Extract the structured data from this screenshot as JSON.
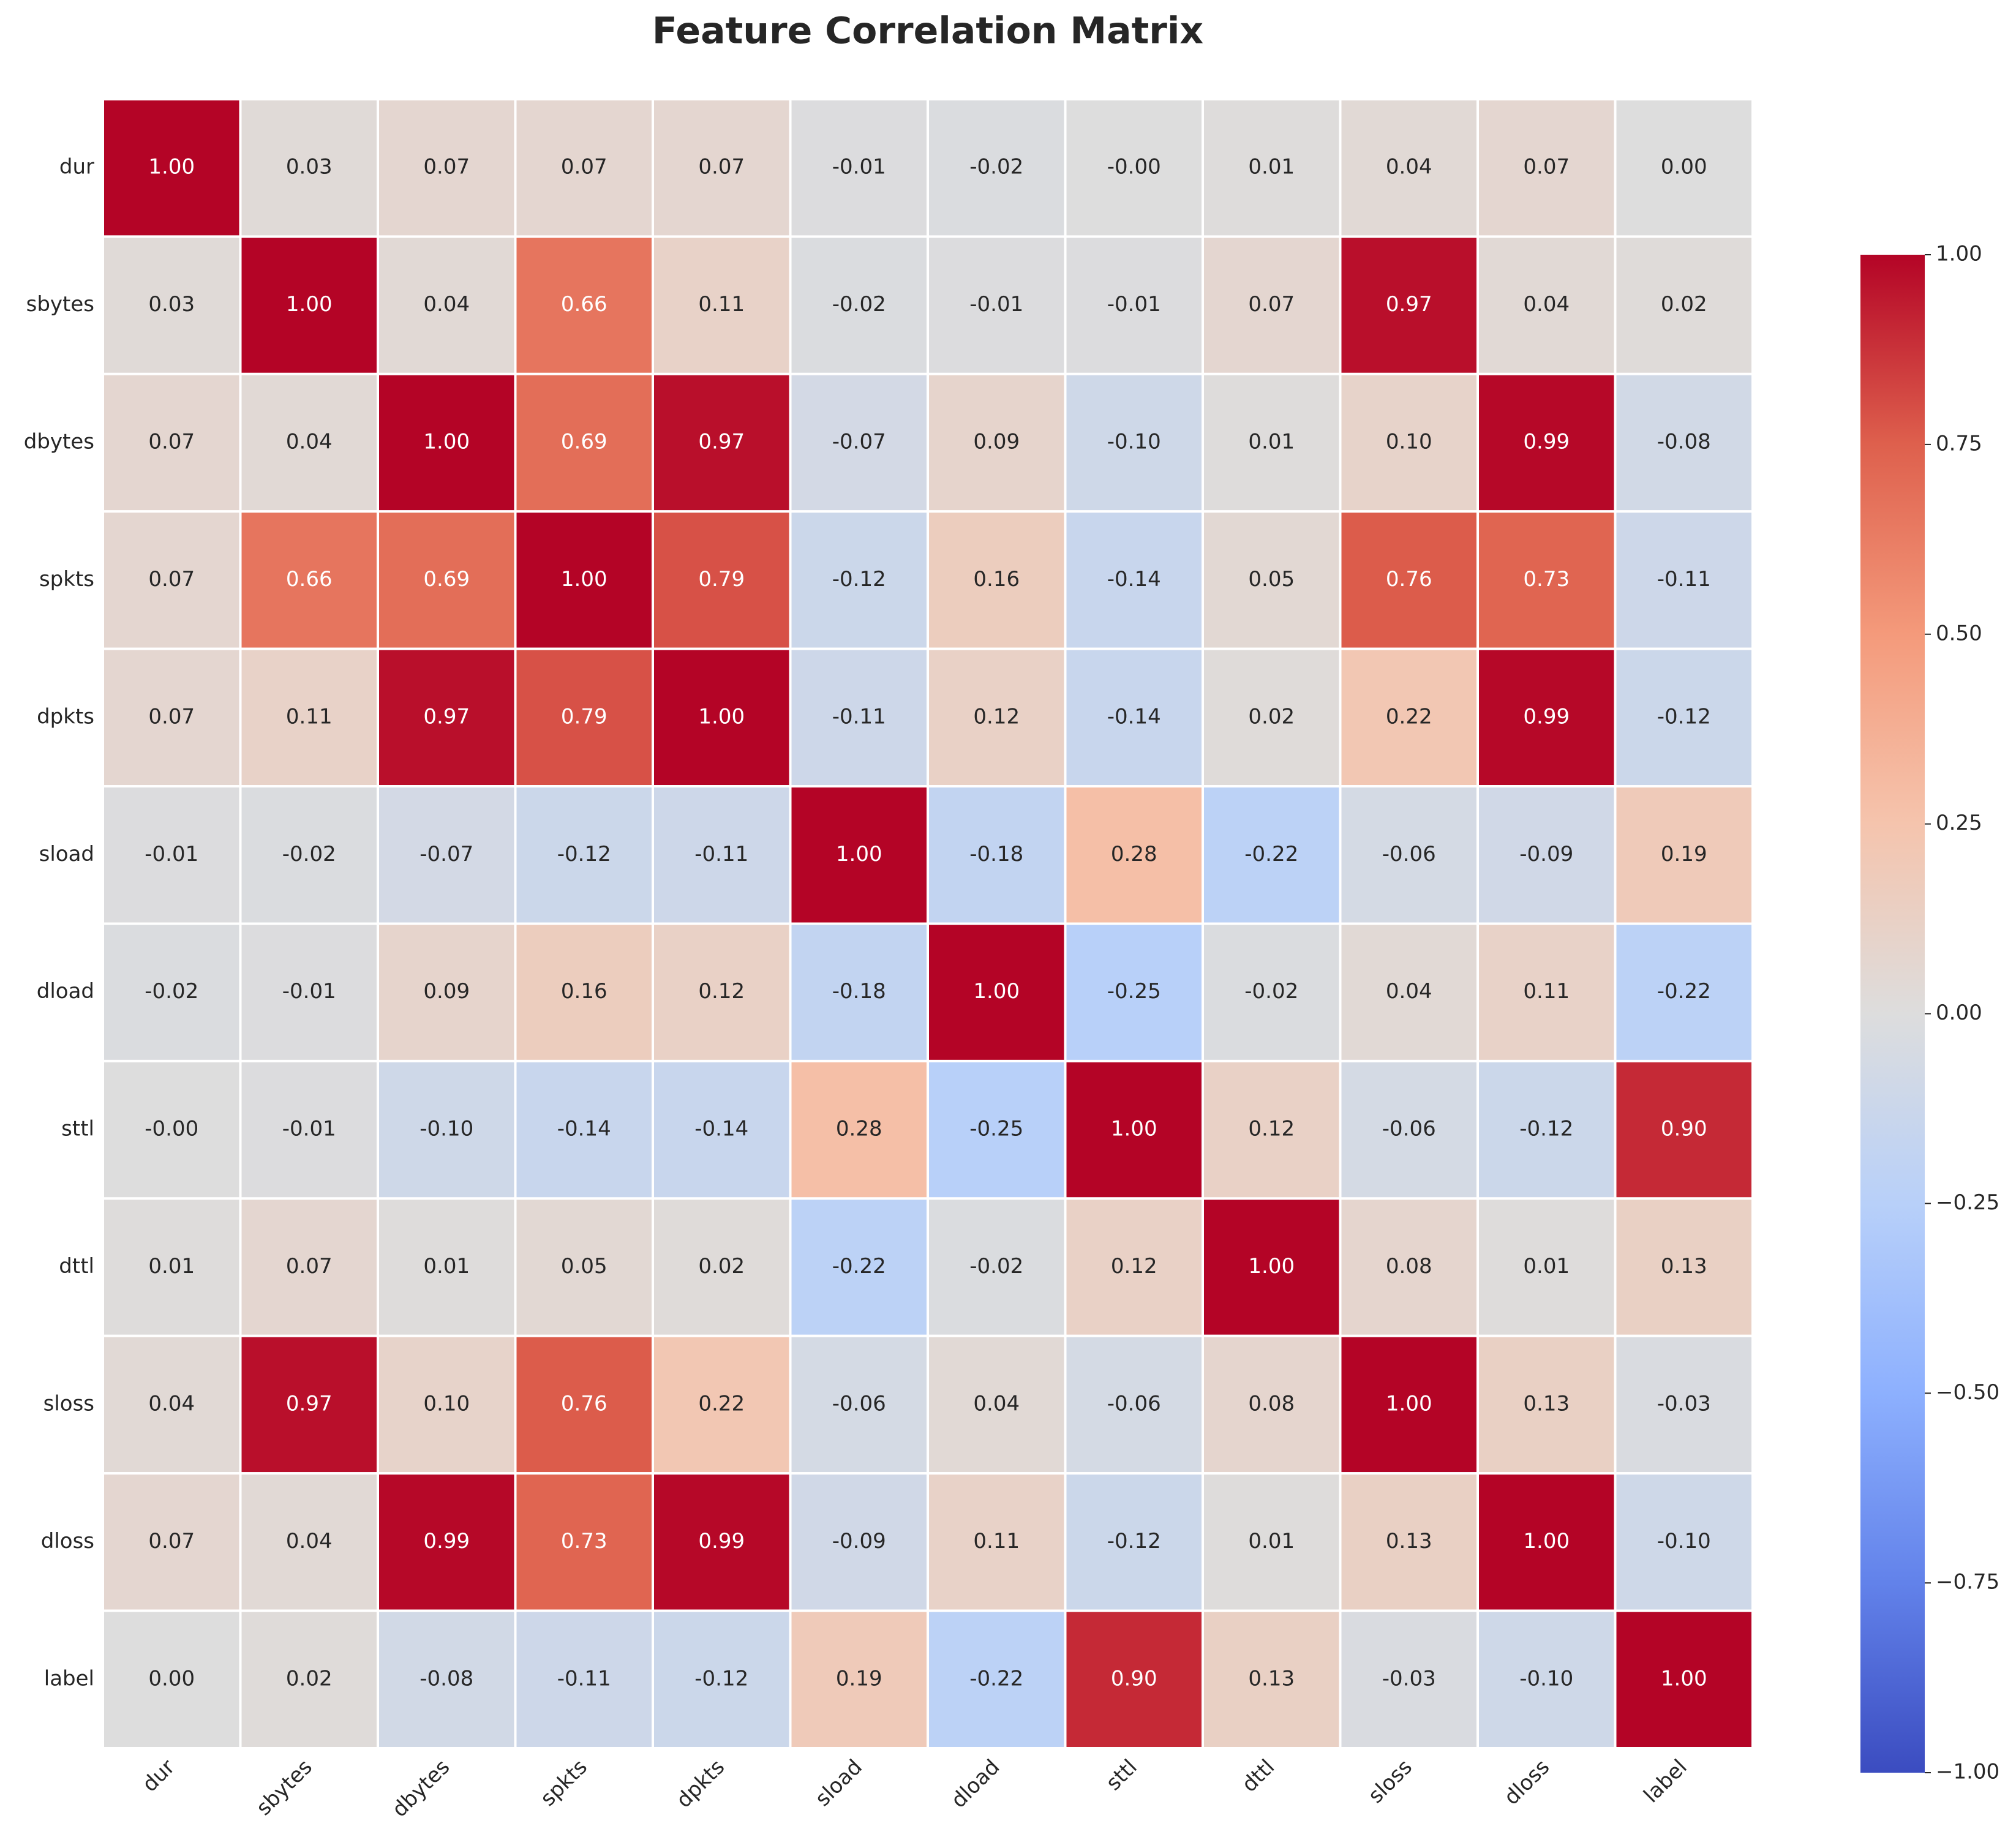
{
  "chart_data": {
    "type": "heatmap",
    "title": "Feature Correlation Matrix",
    "x_categories": [
      "dur",
      "sbytes",
      "dbytes",
      "spkts",
      "dpkts",
      "sload",
      "dload",
      "sttl",
      "dttl",
      "sloss",
      "dloss",
      "label"
    ],
    "y_categories": [
      "dur",
      "sbytes",
      "dbytes",
      "spkts",
      "dpkts",
      "sload",
      "dload",
      "sttl",
      "dttl",
      "sloss",
      "dloss",
      "label"
    ],
    "values": [
      [
        1,
        0.03,
        0.07,
        0.07,
        0.07,
        -0.01,
        -0.02,
        0,
        0.01,
        0.04,
        0.07,
        0
      ],
      [
        0.03,
        1,
        0.04,
        0.66,
        0.11,
        -0.02,
        -0.01,
        -0.01,
        0.07,
        0.97,
        0.04,
        0.02
      ],
      [
        0.07,
        0.04,
        1,
        0.69,
        0.97,
        -0.07,
        0.09,
        -0.1,
        0.01,
        0.1,
        0.99,
        -0.08
      ],
      [
        0.07,
        0.66,
        0.69,
        1,
        0.79,
        -0.12,
        0.16,
        -0.14,
        0.05,
        0.76,
        0.73,
        -0.11
      ],
      [
        0.07,
        0.11,
        0.97,
        0.79,
        1,
        -0.11,
        0.12,
        -0.14,
        0.02,
        0.22,
        0.99,
        -0.12
      ],
      [
        -0.01,
        -0.02,
        -0.07,
        -0.12,
        -0.11,
        1,
        -0.18,
        0.28,
        -0.22,
        -0.06,
        -0.09,
        0.19
      ],
      [
        -0.02,
        -0.01,
        0.09,
        0.16,
        0.12,
        -0.18,
        1,
        -0.25,
        -0.02,
        0.04,
        0.11,
        -0.22
      ],
      [
        0,
        -0.01,
        -0.1,
        -0.14,
        -0.14,
        0.28,
        -0.25,
        1,
        0.12,
        -0.06,
        -0.12,
        0.9
      ],
      [
        0.01,
        0.07,
        0.01,
        0.05,
        0.02,
        -0.22,
        -0.02,
        0.12,
        1,
        0.08,
        0.01,
        0.13
      ],
      [
        0.04,
        0.97,
        0.1,
        0.76,
        0.22,
        -0.06,
        0.04,
        -0.06,
        0.08,
        1,
        0.13,
        -0.03
      ],
      [
        0.07,
        0.04,
        0.99,
        0.73,
        0.99,
        -0.09,
        0.11,
        -0.12,
        0.01,
        0.13,
        1,
        -0.1
      ],
      [
        0,
        0.02,
        -0.08,
        -0.11,
        -0.12,
        0.19,
        -0.22,
        0.9,
        0.13,
        -0.03,
        -0.1,
        1
      ]
    ],
    "value_labels": [
      [
        "1.00",
        "0.03",
        "0.07",
        "0.07",
        "0.07",
        "-0.01",
        "-0.02",
        "-0.00",
        "0.01",
        "0.04",
        "0.07",
        "0.00"
      ],
      [
        "0.03",
        "1.00",
        "0.04",
        "0.66",
        "0.11",
        "-0.02",
        "-0.01",
        "-0.01",
        "0.07",
        "0.97",
        "0.04",
        "0.02"
      ],
      [
        "0.07",
        "0.04",
        "1.00",
        "0.69",
        "0.97",
        "-0.07",
        "0.09",
        "-0.10",
        "0.01",
        "0.10",
        "0.99",
        "-0.08"
      ],
      [
        "0.07",
        "0.66",
        "0.69",
        "1.00",
        "0.79",
        "-0.12",
        "0.16",
        "-0.14",
        "0.05",
        "0.76",
        "0.73",
        "-0.11"
      ],
      [
        "0.07",
        "0.11",
        "0.97",
        "0.79",
        "1.00",
        "-0.11",
        "0.12",
        "-0.14",
        "0.02",
        "0.22",
        "0.99",
        "-0.12"
      ],
      [
        "-0.01",
        "-0.02",
        "-0.07",
        "-0.12",
        "-0.11",
        "1.00",
        "-0.18",
        "0.28",
        "-0.22",
        "-0.06",
        "-0.09",
        "0.19"
      ],
      [
        "-0.02",
        "-0.01",
        "0.09",
        "0.16",
        "0.12",
        "-0.18",
        "1.00",
        "-0.25",
        "-0.02",
        "0.04",
        "0.11",
        "-0.22"
      ],
      [
        "-0.00",
        "-0.01",
        "-0.10",
        "-0.14",
        "-0.14",
        "0.28",
        "-0.25",
        "1.00",
        "0.12",
        "-0.06",
        "-0.12",
        "0.90"
      ],
      [
        "0.01",
        "0.07",
        "0.01",
        "0.05",
        "0.02",
        "-0.22",
        "-0.02",
        "0.12",
        "1.00",
        "0.08",
        "0.01",
        "0.13"
      ],
      [
        "0.04",
        "0.97",
        "0.10",
        "0.76",
        "0.22",
        "-0.06",
        "0.04",
        "-0.06",
        "0.08",
        "1.00",
        "0.13",
        "-0.03"
      ],
      [
        "0.07",
        "0.04",
        "0.99",
        "0.73",
        "0.99",
        "-0.09",
        "0.11",
        "-0.12",
        "0.01",
        "0.13",
        "1.00",
        "-0.10"
      ],
      [
        "0.00",
        "0.02",
        "-0.08",
        "-0.11",
        "-0.12",
        "0.19",
        "-0.22",
        "0.90",
        "0.13",
        "-0.03",
        "-0.10",
        "1.00"
      ]
    ],
    "colormap": "coolwarm",
    "zlim": [
      -1,
      1
    ],
    "zticks": [
      {
        "value": -1,
        "label": "−1.00"
      },
      {
        "value": -0.75,
        "label": "−0.75"
      },
      {
        "value": -0.5,
        "label": "−0.50"
      },
      {
        "value": -0.25,
        "label": "−0.25"
      },
      {
        "value": 0,
        "label": "0.00"
      },
      {
        "value": 0.25,
        "label": "0.25"
      },
      {
        "value": 0.5,
        "label": "0.50"
      },
      {
        "value": 0.75,
        "label": "0.75"
      },
      {
        "value": 1,
        "label": "1.00"
      }
    ]
  }
}
